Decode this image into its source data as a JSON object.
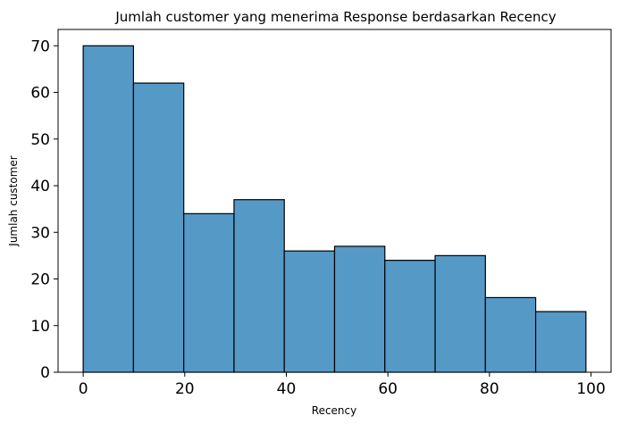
{
  "chart_data": {
    "type": "bar",
    "title": "Jumlah customer yang menerima Response berdasarkan Recency",
    "xlabel": "Recency",
    "ylabel": "Jumlah customer",
    "bins": [
      {
        "start": 0,
        "end": 9.9,
        "count": 70
      },
      {
        "start": 9.9,
        "end": 19.8,
        "count": 62
      },
      {
        "start": 19.8,
        "end": 29.7,
        "count": 34
      },
      {
        "start": 29.7,
        "end": 39.6,
        "count": 37
      },
      {
        "start": 39.6,
        "end": 49.5,
        "count": 26
      },
      {
        "start": 49.5,
        "end": 59.4,
        "count": 27
      },
      {
        "start": 59.4,
        "end": 69.3,
        "count": 24
      },
      {
        "start": 69.3,
        "end": 79.2,
        "count": 25
      },
      {
        "start": 79.2,
        "end": 89.1,
        "count": 16
      },
      {
        "start": 89.1,
        "end": 99,
        "count": 13
      }
    ],
    "xlim": [
      -4.95,
      103.95
    ],
    "ylim": [
      0,
      73.5
    ],
    "xticks": [
      0,
      20,
      40,
      60,
      80,
      100
    ],
    "yticks": [
      0,
      10,
      20,
      30,
      40,
      50,
      60,
      70
    ],
    "bar_color": "#5599c7",
    "edge_color": "#000000",
    "grid": false
  }
}
